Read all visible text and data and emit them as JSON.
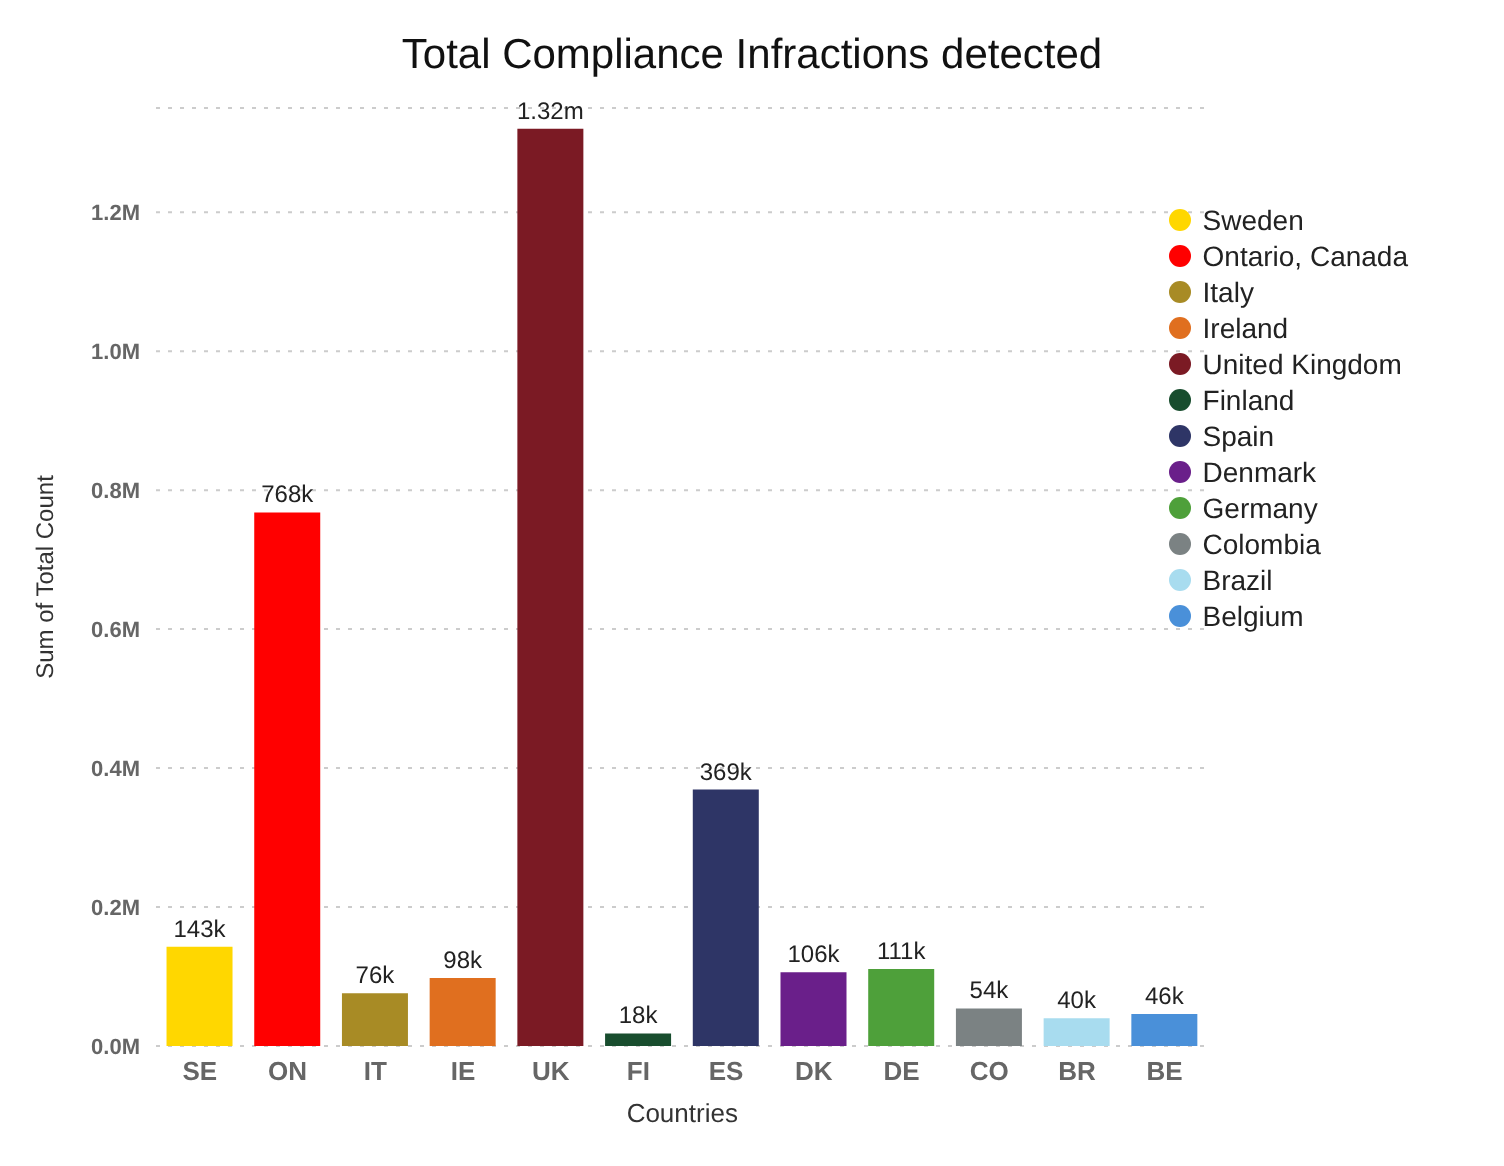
{
  "chart_data": {
    "type": "bar",
    "title": "Total Compliance Infractions detected",
    "xlabel": "Countries",
    "ylabel": "Sum of Total Count",
    "categories": [
      "SE",
      "ON",
      "IT",
      "IE",
      "UK",
      "FI",
      "ES",
      "DK",
      "DE",
      "CO",
      "BR",
      "BE"
    ],
    "stacked": true,
    "grid": "y",
    "legend": "top right",
    "ylim": [
      0,
      1350000
    ],
    "yticks": [
      {
        "value": 0,
        "label": "0.0M"
      },
      {
        "value": 200000,
        "label": "0.2M"
      },
      {
        "value": 400000,
        "label": "0.4M"
      },
      {
        "value": 600000,
        "label": "0.6M"
      },
      {
        "value": 800000,
        "label": "0.8M"
      },
      {
        "value": 1000000,
        "label": "1.0M"
      },
      {
        "value": 1200000,
        "label": "1.2M"
      }
    ],
    "series": [
      {
        "name": "Sweden",
        "color": "#ffd700",
        "values": [
          143000,
          null,
          null,
          null,
          null,
          null,
          null,
          null,
          null,
          null,
          null,
          null
        ],
        "value_labels": [
          "143k",
          null,
          null,
          null,
          null,
          null,
          null,
          null,
          null,
          null,
          null,
          null
        ]
      },
      {
        "name": "Ontario, Canada",
        "color": "#ff0000",
        "values": [
          null,
          768000,
          null,
          null,
          null,
          null,
          null,
          null,
          null,
          null,
          null,
          null
        ],
        "value_labels": [
          null,
          "768k",
          null,
          null,
          null,
          null,
          null,
          null,
          null,
          null,
          null,
          null
        ]
      },
      {
        "name": "Italy",
        "color": "#a88b25",
        "values": [
          null,
          null,
          76000,
          null,
          null,
          null,
          null,
          null,
          null,
          null,
          null,
          null
        ],
        "value_labels": [
          null,
          null,
          "76k",
          null,
          null,
          null,
          null,
          null,
          null,
          null,
          null,
          null
        ]
      },
      {
        "name": "Ireland",
        "color": "#e06f1f",
        "values": [
          null,
          null,
          null,
          98000,
          null,
          null,
          null,
          null,
          null,
          null,
          null,
          null
        ],
        "value_labels": [
          null,
          null,
          null,
          "98k",
          null,
          null,
          null,
          null,
          null,
          null,
          null,
          null
        ]
      },
      {
        "name": "United Kingdom",
        "color": "#7b1a24",
        "values": [
          null,
          null,
          null,
          null,
          1320000,
          null,
          null,
          null,
          null,
          null,
          null,
          null
        ],
        "value_labels": [
          null,
          null,
          null,
          null,
          "1.32m",
          null,
          null,
          null,
          null,
          null,
          null,
          null
        ]
      },
      {
        "name": "Finland",
        "color": "#184d2e",
        "values": [
          null,
          null,
          null,
          null,
          null,
          18000,
          null,
          null,
          null,
          null,
          null,
          null
        ],
        "value_labels": [
          null,
          null,
          null,
          null,
          null,
          "18k",
          null,
          null,
          null,
          null,
          null,
          null
        ]
      },
      {
        "name": "Spain",
        "color": "#2e3566",
        "values": [
          null,
          null,
          null,
          null,
          null,
          null,
          369000,
          null,
          null,
          null,
          null,
          null
        ],
        "value_labels": [
          null,
          null,
          null,
          null,
          null,
          null,
          "369k",
          null,
          null,
          null,
          null,
          null
        ]
      },
      {
        "name": "Denmark",
        "color": "#6a1f8a",
        "values": [
          null,
          null,
          null,
          null,
          null,
          null,
          null,
          106000,
          null,
          null,
          null,
          null
        ],
        "value_labels": [
          null,
          null,
          null,
          null,
          null,
          null,
          null,
          "106k",
          null,
          null,
          null,
          null
        ]
      },
      {
        "name": "Germany",
        "color": "#4ea03a",
        "values": [
          null,
          null,
          null,
          null,
          null,
          null,
          null,
          null,
          111000,
          null,
          null,
          null
        ],
        "value_labels": [
          null,
          null,
          null,
          null,
          null,
          null,
          null,
          null,
          "111k",
          null,
          null,
          null
        ]
      },
      {
        "name": "Colombia",
        "color": "#7b8283",
        "values": [
          null,
          null,
          null,
          null,
          null,
          null,
          null,
          null,
          null,
          54000,
          null,
          null
        ],
        "value_labels": [
          null,
          null,
          null,
          null,
          null,
          null,
          null,
          null,
          null,
          "54k",
          null,
          null
        ]
      },
      {
        "name": "Brazil",
        "color": "#a8dcef",
        "values": [
          null,
          null,
          null,
          null,
          null,
          null,
          null,
          null,
          null,
          null,
          40000,
          null
        ],
        "value_labels": [
          null,
          null,
          null,
          null,
          null,
          null,
          null,
          null,
          null,
          null,
          "40k",
          null
        ]
      },
      {
        "name": "Belgium",
        "color": "#4a90d9",
        "values": [
          null,
          null,
          null,
          null,
          null,
          null,
          null,
          null,
          null,
          null,
          null,
          46000
        ],
        "value_labels": [
          null,
          null,
          null,
          null,
          null,
          null,
          null,
          null,
          null,
          null,
          null,
          "46k"
        ]
      }
    ]
  }
}
